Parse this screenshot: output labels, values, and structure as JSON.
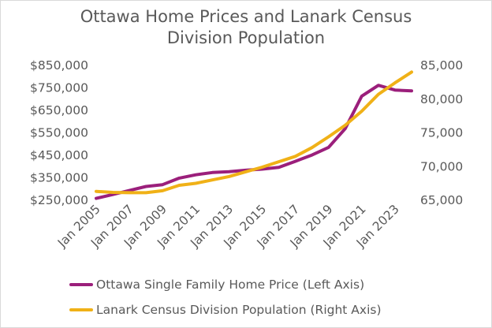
{
  "chart_data": {
    "type": "line",
    "title_lines": [
      "Ottawa Home Prices and Lanark Census",
      "Division Population"
    ],
    "x_labels": [
      "Jan 2005",
      "Jan 2007",
      "Jan 2009",
      "Jan 2011",
      "Jan 2013",
      "Jan 2015",
      "Jan 2017",
      "Jan 2019",
      "Jan 2021",
      "Jan 2023"
    ],
    "x": [
      2005,
      2006,
      2007,
      2008,
      2009,
      2010,
      2011,
      2012,
      2013,
      2014,
      2015,
      2016,
      2017,
      2018,
      2019,
      2020,
      2021,
      2022,
      2023,
      2024
    ],
    "y_left_ticks": [
      "$850,000",
      "$750,000",
      "$650,000",
      "$550,000",
      "$450,000",
      "$350,000",
      "$250,000"
    ],
    "y_left_range": [
      250000,
      850000
    ],
    "y_right_ticks": [
      "85,000",
      "80,000",
      "75,000",
      "70,000",
      "65,000"
    ],
    "y_right_range": [
      65000,
      85000
    ],
    "grid": false,
    "legend_position": "bottom",
    "series": [
      {
        "name": "Ottawa Single Family Home Price (Left Axis)",
        "axis": "left",
        "color": "#9b1f7b",
        "values": [
          255000,
          272000,
          290000,
          308000,
          316000,
          345000,
          360000,
          370000,
          374000,
          380000,
          385000,
          393000,
          420000,
          448000,
          482000,
          565000,
          710000,
          758000,
          737000,
          733000
        ]
      },
      {
        "name": "Lanark Census Division Population (Right Axis)",
        "axis": "right",
        "color": "#f0b117",
        "values": [
          66200,
          66050,
          66000,
          66000,
          66300,
          67100,
          67400,
          67900,
          68400,
          69100,
          69800,
          70600,
          71400,
          72700,
          74300,
          76000,
          78100,
          80600,
          82300,
          83900
        ]
      }
    ]
  }
}
